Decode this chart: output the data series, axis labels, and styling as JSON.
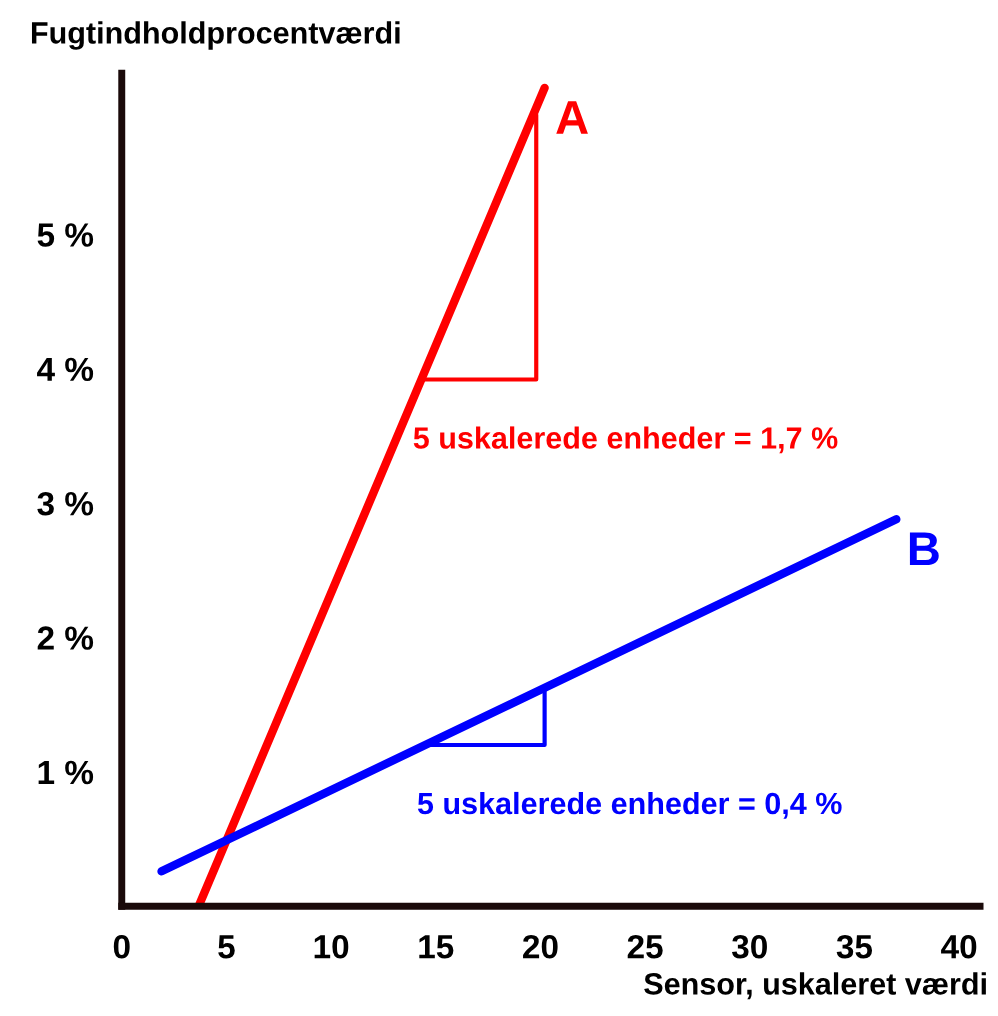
{
  "chart_data": {
    "type": "line",
    "ylabel": "Fugtindholdprocentværdi",
    "xlabel": "Sensor, uskaleret værdi",
    "series": [
      {
        "name": "A",
        "color": "#ff0000",
        "x": [
          3.7,
          20.2
        ],
        "values": [
          0.01,
          6.09
        ]
      },
      {
        "name": "B",
        "color": "#0000ff",
        "x": [
          1.9,
          37.0
        ],
        "values": [
          0.26,
          2.88
        ]
      },
      {
        "color": "#ff0000",
        "x": [
          14.3,
          19.8,
          19.8
        ],
        "values": [
          3.92,
          3.92,
          5.89
        ]
      },
      {
        "color": "#0000ff",
        "x": [
          14.5,
          20.2,
          20.2
        ],
        "values": [
          1.2,
          1.2,
          1.61
        ]
      }
    ],
    "annotations": [
      "5 uskalerede enheder = 1,7 %",
      "5 uskalerede enheder = 0,4 %"
    ],
    "xlim": [
      0,
      41
    ],
    "ylim": [
      0,
      6.2
    ],
    "xticks": [
      0,
      5,
      10,
      15,
      20,
      25,
      30,
      35,
      40
    ],
    "yticks": [
      {
        "value": 1,
        "label": "1 %"
      },
      {
        "value": 2,
        "label": "2 %"
      },
      {
        "value": 3,
        "label": "3 %"
      },
      {
        "value": 4,
        "label": "4 %"
      },
      {
        "value": 5,
        "label": "5 %"
      }
    ],
    "grid": false,
    "legend": false,
    "marker": "none",
    "line_style": "solid"
  }
}
